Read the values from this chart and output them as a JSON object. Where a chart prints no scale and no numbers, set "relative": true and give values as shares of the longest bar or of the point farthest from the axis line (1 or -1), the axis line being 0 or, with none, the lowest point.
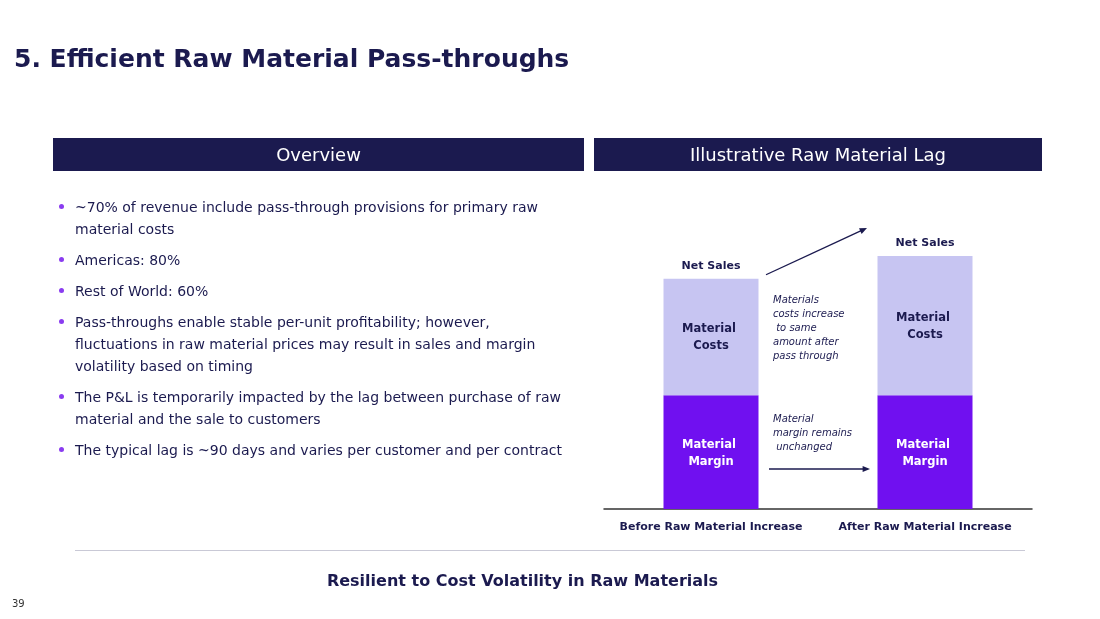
{
  "chart_data": [
    {
      "type": "other",
      "title": "5. Efficient Raw Material Pass-throughs",
      "subtitle": "Overview",
      "annotations": [
        "~70% of revenue include pass-through provisions for primary raw material costs",
        "Americas: 80%",
        "Rest of World: 60%",
        "Pass-throughs enable stable per-unit profitability; however, fluctuations in raw material prices may result in sales and margin volatility based on timing",
        "The P&L is temporarily impacted by the lag between purchase of raw material and the sale to customers",
        "The typical lag is ~90 days and varies per customer and per contract"
      ]
    },
    {
      "type": "bar",
      "title": "Illustrative Raw Material Lag",
      "categories": [
        "Before Raw Material Increase",
        "After Raw Material Increase"
      ],
      "stacked": true,
      "relative": true,
      "series": [
        {
          "name": "Material Margin",
          "color": "#7010f0",
          "values": [
            0.45,
            0.45
          ]
        },
        {
          "name": "Material Costs",
          "color": "#c7c5f2",
          "values": [
            0.46,
            0.55
          ]
        }
      ],
      "totals": [
        "Net Sales",
        "Net Sales"
      ],
      "annotations": [
        "Materials costs increase to same amount after pass through",
        "Material margin remains unchanged"
      ]
    },
    {
      "type": "other",
      "title": "Resilient to Cost Volatility in Raw Materials",
      "annotations": [
        "39"
      ]
    }
  ]
}
